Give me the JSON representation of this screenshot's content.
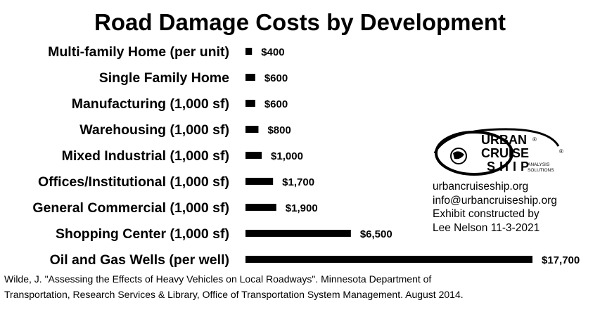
{
  "chart_data": {
    "type": "bar",
    "orientation": "horizontal",
    "title": "Road Damage Costs by Development",
    "categories": [
      "Multi-family Home (per unit)",
      "Single Family Home",
      "Manufacturing (1,000 sf)",
      "Warehousing (1,000 sf)",
      "Mixed Industrial (1,000 sf)",
      "Offices/Institutional (1,000 sf)",
      "General Commercial (1,000 sf)",
      "Shopping Center (1,000 sf)",
      "Oil and Gas Wells (per well)"
    ],
    "values": [
      400,
      600,
      600,
      800,
      1000,
      1700,
      1900,
      6500,
      17700
    ],
    "value_labels": [
      "$400",
      "$600",
      "$600",
      "$800",
      "$1,000",
      "$1,700",
      "$1,900",
      "$6,500",
      "$17,700"
    ],
    "bar_color": "#000000",
    "grid": false,
    "legend": "none"
  },
  "logo": {
    "line1": "URBAN",
    "line2": "CRUISE",
    "line3": "SHIP",
    "tag1": "ANALYSIS",
    "tag2": "SOLUTIONS",
    "reg": "®"
  },
  "credits": {
    "website": "urbancruiseship.org",
    "email": "info@urbancruiseship.org",
    "line3": "Exhibit constructed by",
    "line4": "Lee Nelson 11-3-2021"
  },
  "citation": {
    "line1": "Wilde, J. \"Assessing the Effects of Heavy Vehicles on Local Roadways\". Minnesota Department of",
    "line2": "Transportation, Research Services & Library, Office of Transportation System Management. August 2014."
  }
}
